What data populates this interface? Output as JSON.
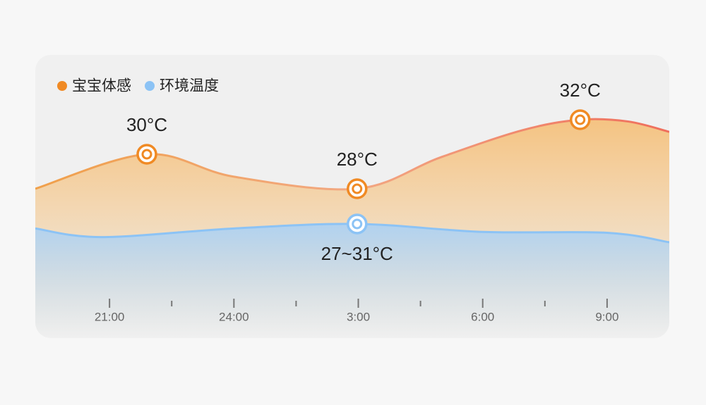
{
  "chart_data": {
    "type": "area",
    "legend": "top-left",
    "x": null,
    "xlim": [
      19.21,
      34.5
    ],
    "ylim": [
      20,
      33
    ],
    "xticks": [
      {
        "value": 21,
        "label": "21:00"
      },
      {
        "value": 24,
        "label": "24:00"
      },
      {
        "value": 27,
        "label": "3:00"
      },
      {
        "value": 30,
        "label": "6:00"
      },
      {
        "value": 33,
        "label": "9:00"
      }
    ],
    "minor_xticks": [
      22.5,
      25.5,
      28.5,
      31.5
    ],
    "series": [
      {
        "name": "宝宝体感",
        "color": "#f08a24",
        "fill": "#f6c07a",
        "x": [
          19.21,
          21.9,
          24,
          26.97,
          28.96,
          30.97,
          32.35,
          33.5,
          34.5
        ],
        "values": [
          28,
          30,
          28.7,
          28,
          29.8,
          31.4,
          32,
          31.9,
          31.3
        ],
        "value_labels": [
          null,
          "30°C",
          null,
          "28°C",
          null,
          null,
          "32°C",
          null,
          null
        ]
      },
      {
        "name": "环境温度",
        "color": "#8cc3f5",
        "fill": "#b3d7f6",
        "x": [
          19.21,
          20.8,
          24,
          26.97,
          30,
          33,
          34.5
        ],
        "values": [
          25.7,
          25.2,
          25.7,
          25.96,
          25.5,
          25.45,
          24.9
        ],
        "annotations": [
          {
            "text": "27~31°C",
            "x": 26.97
          }
        ]
      }
    ]
  }
}
